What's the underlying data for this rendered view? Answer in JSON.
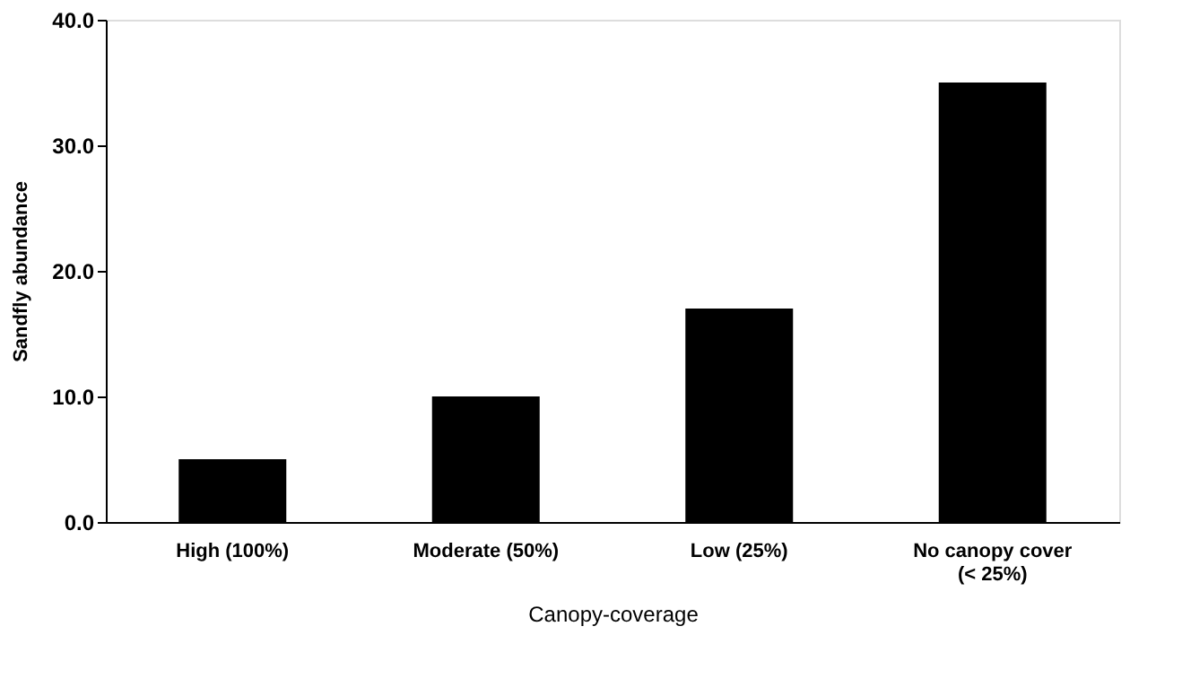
{
  "chart_data": {
    "type": "bar",
    "xlabel": "Canopy-coverage",
    "ylabel": "Sandfly abundance",
    "categories": [
      "High (100%)",
      "Moderate (50%)",
      "Low (25%)",
      "No canopy  cover\n(< 25%)"
    ],
    "values": [
      5,
      10,
      17,
      35
    ],
    "color": "#000000",
    "ylim": [
      0,
      40
    ],
    "yticks": [
      {
        "value": 0,
        "label": "0.0"
      },
      {
        "value": 10,
        "label": "10.0"
      },
      {
        "value": 20,
        "label": "20.0"
      },
      {
        "value": 30,
        "label": "30.0"
      },
      {
        "value": 40,
        "label": "40.0"
      }
    ],
    "grid": false
  }
}
